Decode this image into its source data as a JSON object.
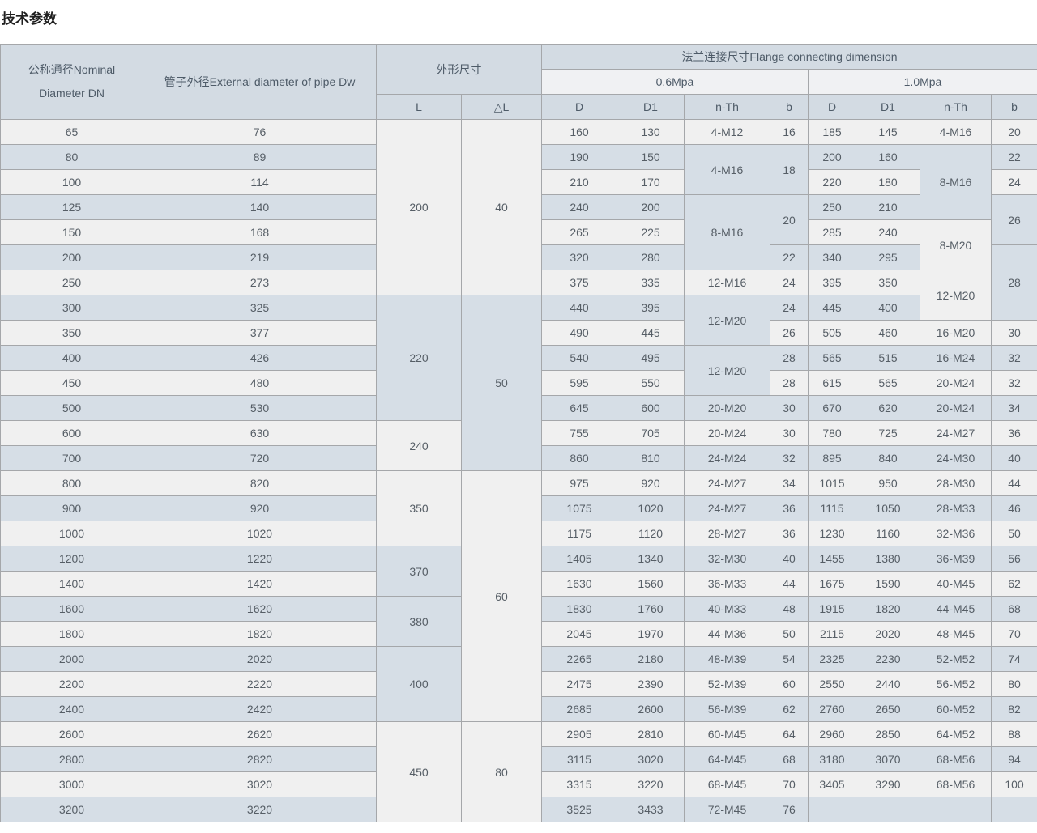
{
  "page": {
    "title": "技术参数"
  },
  "colors": {
    "row_light": "#f0f0f0",
    "row_alt": "#d6dee6",
    "header_bg": "#d3dbe3",
    "subheader_bg": "#f0f1f3",
    "border": "#a5a7aa",
    "text": "#565e66"
  },
  "table": {
    "headers": {
      "dn": "公称通径Nominal\nDiameter DN",
      "dw": "管子外径External diameter of pipe Dw",
      "dimensions": "外形尺寸",
      "flange": "法兰连接尺寸Flange connecting dimension",
      "p06": "0.6Mpa",
      "p10": "1.0Mpa",
      "L": "L",
      "dL": "△L",
      "D": "D",
      "D1": "D1",
      "nTh": "n-Th",
      "b": "b"
    },
    "rows": [
      [
        "65",
        "76",
        {
          "v": "200",
          "rs": 7
        },
        {
          "v": "40",
          "rs": 7
        },
        "160",
        "130",
        "4-M12",
        "16",
        "185",
        "145",
        "4-M16",
        "20"
      ],
      [
        "80",
        "89",
        "190",
        "150",
        {
          "v": "4-M16",
          "rs": 2
        },
        {
          "v": "18",
          "rs": 2
        },
        "200",
        "160",
        {
          "v": "8-M16",
          "rs": 3
        },
        "22"
      ],
      [
        "100",
        "114",
        "210",
        "170",
        "220",
        "180",
        "24"
      ],
      [
        "125",
        "140",
        "240",
        "200",
        {
          "v": "8-M16",
          "rs": 3
        },
        {
          "v": "20",
          "rs": 2
        },
        "250",
        "210",
        {
          "v": "26",
          "rs": 2
        }
      ],
      [
        "150",
        "168",
        "265",
        "225",
        "285",
        "240",
        {
          "v": "8-M20",
          "rs": 2
        }
      ],
      [
        "200",
        "219",
        "320",
        "280",
        "22",
        "340",
        "295",
        {
          "v": "28",
          "rs": 3
        }
      ],
      [
        "250",
        "273",
        "375",
        "335",
        "12-M16",
        "24",
        "395",
        "350",
        {
          "v": "12-M20",
          "rs": 2
        }
      ],
      [
        "300",
        "325",
        {
          "v": "220",
          "rs": 5
        },
        {
          "v": "50",
          "rs": 7
        },
        "440",
        "395",
        {
          "v": "12-M20",
          "rs": 2
        },
        "24",
        "445",
        "400"
      ],
      [
        "350",
        "377",
        "490",
        "445",
        "26",
        "505",
        "460",
        "16-M20",
        "30"
      ],
      [
        "400",
        "426",
        "540",
        "495",
        {
          "v": "12-M20",
          "rs": 2
        },
        "28",
        "565",
        "515",
        "16-M24",
        "32"
      ],
      [
        "450",
        "480",
        "595",
        "550",
        "28",
        "615",
        "565",
        "20-M24",
        "32"
      ],
      [
        "500",
        "530",
        "645",
        "600",
        "20-M20",
        "30",
        "670",
        "620",
        "20-M24",
        "34"
      ],
      [
        "600",
        "630",
        {
          "v": "240",
          "rs": 2
        },
        "755",
        "705",
        "20-M24",
        "30",
        "780",
        "725",
        "24-M27",
        "36"
      ],
      [
        "700",
        "720",
        "860",
        "810",
        "24-M24",
        "32",
        "895",
        "840",
        "24-M30",
        "40"
      ],
      [
        "800",
        "820",
        {
          "v": "350",
          "rs": 3
        },
        {
          "v": "60",
          "rs": 10
        },
        "975",
        "920",
        "24-M27",
        "34",
        "1015",
        "950",
        "28-M30",
        "44"
      ],
      [
        "900",
        "920",
        "1075",
        "1020",
        "24-M27",
        "36",
        "1115",
        "1050",
        "28-M33",
        "46"
      ],
      [
        "1000",
        "1020",
        "1175",
        "1120",
        "28-M27",
        "36",
        "1230",
        "1160",
        "32-M36",
        "50"
      ],
      [
        "1200",
        "1220",
        {
          "v": "370",
          "rs": 2
        },
        "1405",
        "1340",
        "32-M30",
        "40",
        "1455",
        "1380",
        "36-M39",
        "56"
      ],
      [
        "1400",
        "1420",
        "1630",
        "1560",
        "36-M33",
        "44",
        "1675",
        "1590",
        "40-M45",
        "62"
      ],
      [
        "1600",
        "1620",
        {
          "v": "380",
          "rs": 2
        },
        "1830",
        "1760",
        "40-M33",
        "48",
        "1915",
        "1820",
        "44-M45",
        "68"
      ],
      [
        "1800",
        "1820",
        "2045",
        "1970",
        "44-M36",
        "50",
        "2115",
        "2020",
        "48-M45",
        "70"
      ],
      [
        "2000",
        "2020",
        {
          "v": "400",
          "rs": 3
        },
        "2265",
        "2180",
        "48-M39",
        "54",
        "2325",
        "2230",
        "52-M52",
        "74"
      ],
      [
        "2200",
        "2220",
        "2475",
        "2390",
        "52-M39",
        "60",
        "2550",
        "2440",
        "56-M52",
        "80"
      ],
      [
        "2400",
        "2420",
        "2685",
        "2600",
        "56-M39",
        "62",
        "2760",
        "2650",
        "60-M52",
        "82"
      ],
      [
        "2600",
        "2620",
        {
          "v": "450",
          "rs": 4
        },
        {
          "v": "80",
          "rs": 4
        },
        "2905",
        "2810",
        "60-M45",
        "64",
        "2960",
        "2850",
        "64-M52",
        "88"
      ],
      [
        "2800",
        "2820",
        "3115",
        "3020",
        "64-M45",
        "68",
        "3180",
        "3070",
        "68-M56",
        "94"
      ],
      [
        "3000",
        "3020",
        "3315",
        "3220",
        "68-M45",
        "70",
        "3405",
        "3290",
        "68-M56",
        "100"
      ],
      [
        "3200",
        "3220",
        "3525",
        "3433",
        "72-M45",
        "76",
        "",
        "",
        "",
        ""
      ]
    ]
  }
}
